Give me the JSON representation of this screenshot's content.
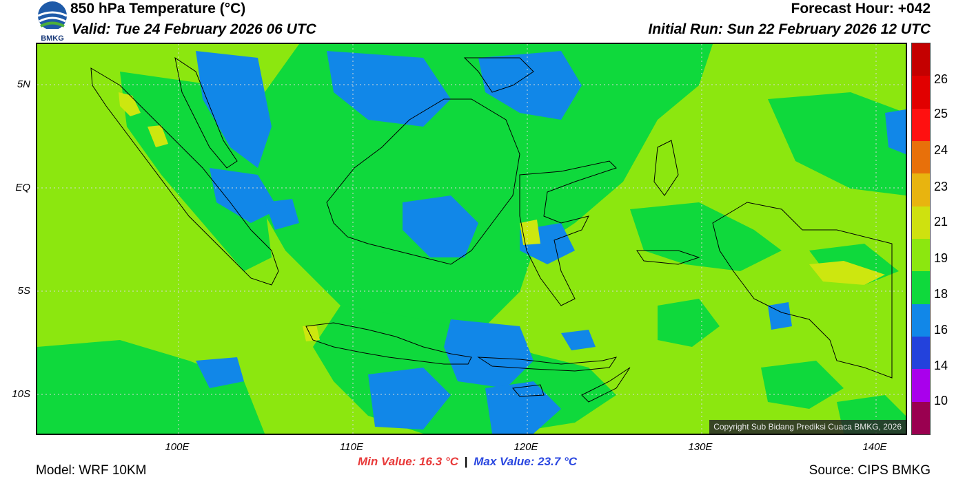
{
  "header": {
    "title": "850 hPa Temperature (°C)",
    "valid": "Valid: Tue 24 February 2026 06 UTC",
    "forecast_hour": "Forecast Hour: +042",
    "initial_run": "Initial Run: Sun 22 February 2026 12 UTC",
    "logo_text": "BMKG"
  },
  "map": {
    "lat_labels": [
      "5N",
      "EQ",
      "5S",
      "10S"
    ],
    "lon_labels": [
      "100E",
      "110E",
      "120E",
      "130E",
      "140E"
    ],
    "copyright": "Copyright Sub Bidang Prediksi Cuaca BMKG, 2026",
    "colors": {
      "c19_21": "#8ce70f",
      "c18_19": "#0fd93c",
      "c16_18": "#1187e8",
      "c21_23": "#cde70f"
    }
  },
  "colorscale": {
    "labels": [
      "26",
      "25",
      "24",
      "23",
      "21",
      "19",
      "18",
      "16",
      "14",
      "10"
    ],
    "colors": [
      "#c40000",
      "#e10000",
      "#ff1010",
      "#e8700a",
      "#e8b40f",
      "#cfe10f",
      "#8ce70f",
      "#0fd93c",
      "#1187e8",
      "#2342dc",
      "#a900ec",
      "#9a0050"
    ]
  },
  "footer": {
    "min_value": "Min Value: 16.3 °C",
    "separator": "|",
    "max_value": "Max Value: 23.7 °C",
    "model": "Model: WRF 10KM",
    "source": "Source: CIPS BMKG"
  }
}
